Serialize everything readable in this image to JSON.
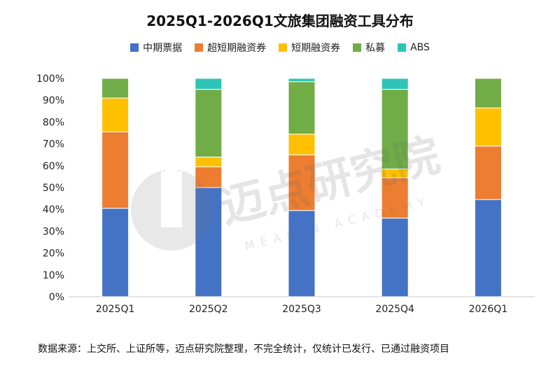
{
  "chart_data": {
    "type": "bar",
    "stacked": true,
    "percent": true,
    "title": "2025Q1-2026Q1文旅集团融资工具分布",
    "categories": [
      "2025Q1",
      "2025Q2",
      "2025Q3",
      "2025Q4",
      "2026Q1"
    ],
    "series": [
      {
        "name": "中期票据",
        "color": "#4472C4",
        "values": [
          40.5,
          50,
          39.5,
          36,
          44.5
        ]
      },
      {
        "name": "超短期融资券",
        "color": "#ED7D31",
        "values": [
          35,
          9.5,
          25.5,
          18.5,
          24.5
        ]
      },
      {
        "name": "短期融资券",
        "color": "#FFC000",
        "values": [
          15.5,
          4.5,
          9.5,
          4,
          17.5
        ]
      },
      {
        "name": "私募",
        "color": "#70AD47",
        "values": [
          9,
          31,
          24,
          36.5,
          13.5
        ]
      },
      {
        "name": "ABS",
        "color": "#2EC4B6",
        "values": [
          0,
          5,
          1.5,
          5,
          0
        ]
      }
    ],
    "ylim": [
      0,
      100
    ],
    "yticks": [
      "0%",
      "10%",
      "20%",
      "30%",
      "40%",
      "50%",
      "60%",
      "70%",
      "80%",
      "90%",
      "100%"
    ],
    "legend_position": "top",
    "grid": false
  },
  "watermark": {
    "text": "迈点研究院",
    "subtext": "MEADIN ACADEMY"
  },
  "source": "数据来源：上交所、上证所等，迈点研究院整理，不完全统计，仅统计已发行、已通过融资项目"
}
